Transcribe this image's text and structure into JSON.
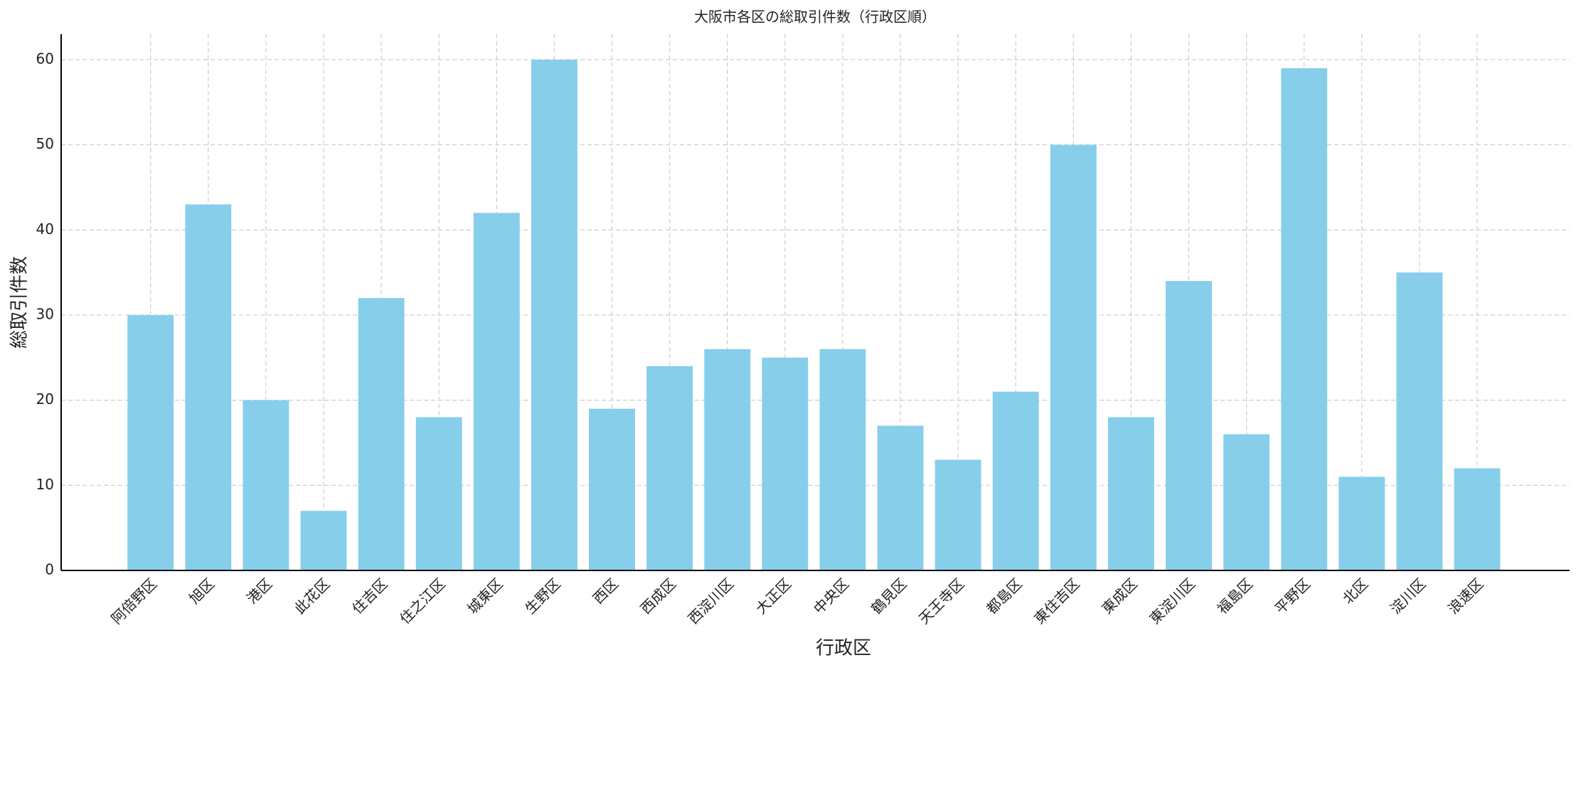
{
  "chart_data": {
    "type": "bar",
    "title": "大阪市各区の総取引件数（行政区順）",
    "x_label": "行政区",
    "y_label": "総取引件数",
    "categories": [
      "阿倍野区",
      "旭区",
      "港区",
      "此花区",
      "住吉区",
      "住之江区",
      "城東区",
      "生野区",
      "西区",
      "西成区",
      "西淀川区",
      "大正区",
      "中央区",
      "鶴見区",
      "天王寺区",
      "都島区",
      "東住吉区",
      "東成区",
      "東淀川区",
      "福島区",
      "平野区",
      "北区",
      "淀川区",
      "浪速区"
    ],
    "values": [
      30,
      43,
      20,
      7,
      32,
      18,
      42,
      60,
      19,
      24,
      26,
      25,
      26,
      17,
      13,
      21,
      50,
      18,
      34,
      16,
      59,
      11,
      35,
      12
    ],
    "color": "#87ceeb",
    "ylim": [
      0,
      63
    ],
    "yticks": [
      0,
      10,
      20,
      30,
      40,
      50,
      60
    ],
    "grid": true
  }
}
